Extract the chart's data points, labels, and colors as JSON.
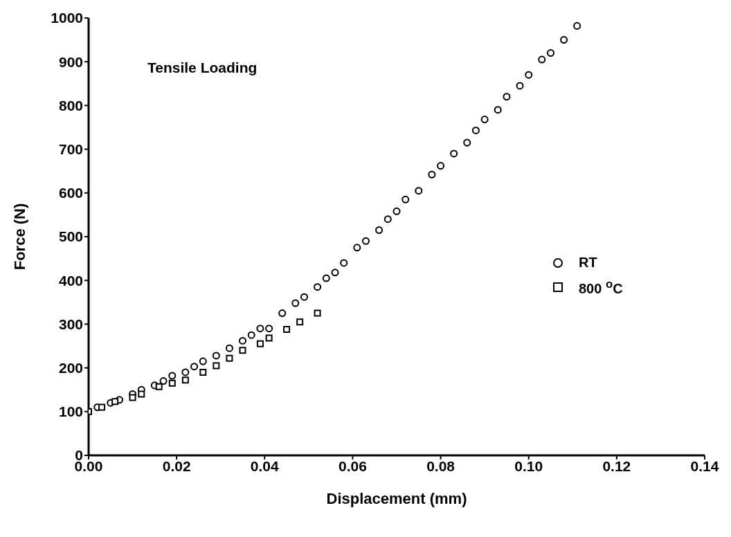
{
  "chart_data": {
    "type": "scatter",
    "xlabel": "Displacement (mm)",
    "ylabel": "Force (N)",
    "annotations": [
      "Tensile Loading"
    ],
    "xlim": [
      0,
      0.14
    ],
    "xticks": [
      {
        "value": 0,
        "label": "0.00"
      },
      {
        "value": 0.02,
        "label": "0.02"
      },
      {
        "value": 0.04,
        "label": "0.04"
      },
      {
        "value": 0.06,
        "label": "0.06"
      },
      {
        "value": 0.08,
        "label": "0.08"
      },
      {
        "value": 0.1,
        "label": "0.10"
      },
      {
        "value": 0.12,
        "label": "0.12"
      },
      {
        "value": 0.14,
        "label": "0.14"
      }
    ],
    "ylim": [
      0,
      1000
    ],
    "yticks": [
      0,
      100,
      200,
      300,
      400,
      500,
      600,
      700,
      800,
      900,
      1000
    ],
    "grid": false,
    "legend": "right",
    "series": [
      {
        "name": "RT",
        "color": "#000000",
        "marker": "circle",
        "x": [
          0.002,
          0.005,
          0.007,
          0.01,
          0.012,
          0.015,
          0.017,
          0.019,
          0.022,
          0.024,
          0.026,
          0.029,
          0.032,
          0.035,
          0.037,
          0.039,
          0.041,
          0.044,
          0.047,
          0.049,
          0.052,
          0.054,
          0.056,
          0.058,
          0.061,
          0.063,
          0.066,
          0.068,
          0.07,
          0.072,
          0.075,
          0.078,
          0.08,
          0.083,
          0.086,
          0.088,
          0.09,
          0.093,
          0.095,
          0.098,
          0.1,
          0.103,
          0.105,
          0.108,
          0.111
        ],
        "values": [
          110,
          120,
          127,
          140,
          150,
          160,
          170,
          182,
          190,
          203,
          215,
          228,
          245,
          262,
          275,
          290,
          290,
          325,
          348,
          362,
          385,
          405,
          418,
          440,
          475,
          490,
          515,
          540,
          558,
          585,
          605,
          642,
          662,
          690,
          715,
          743,
          768,
          790,
          820,
          845,
          870,
          905,
          920,
          950,
          982
        ]
      },
      {
        "name": "800 $^{o}$C",
        "color": "#000000",
        "marker": "square",
        "x": [
          0.0,
          0.003,
          0.006,
          0.01,
          0.012,
          0.016,
          0.019,
          0.022,
          0.026,
          0.029,
          0.032,
          0.035,
          0.039,
          0.041,
          0.045,
          0.048,
          0.052
        ],
        "values": [
          100,
          110,
          123,
          132,
          140,
          157,
          165,
          172,
          190,
          205,
          222,
          240,
          255,
          268,
          288,
          305,
          325
        ]
      }
    ]
  }
}
